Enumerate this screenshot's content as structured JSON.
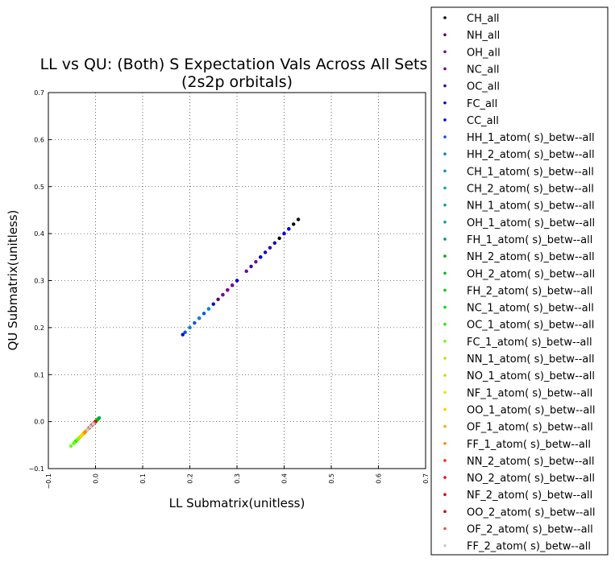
{
  "chart_data": {
    "type": "scatter",
    "title": "LL vs QU: (Both) S Expectation Vals Across All Sets",
    "subtitle": "(2s2p orbitals)",
    "xlabel": "LL Submatrix(unitless)",
    "ylabel": "QU Submatrix(unitless)",
    "xlim": [
      -0.1,
      0.7
    ],
    "ylim": [
      -0.1,
      0.7
    ],
    "xticks": [
      "−0.1",
      "0.0",
      "0.1",
      "0.2",
      "0.3",
      "0.4",
      "0.5",
      "0.6",
      "0.7"
    ],
    "yticks": [
      "−0.1",
      "0.0",
      "0.1",
      "0.2",
      "0.3",
      "0.4",
      "0.5",
      "0.6",
      "0.7"
    ],
    "grid": true,
    "legend_position": "right, outside plot",
    "series": [
      {
        "name": "CH_all",
        "color": "#000000",
        "x": [
          0.39,
          0.41,
          0.42,
          0.43
        ],
        "y": [
          0.39,
          0.41,
          0.42,
          0.43
        ]
      },
      {
        "name": "NH_all",
        "color": "#5a0060",
        "x": [
          0.26,
          0.27,
          0.28,
          0.29
        ],
        "y": [
          0.26,
          0.27,
          0.28,
          0.29
        ]
      },
      {
        "name": "OH_all",
        "color": "#7a0090",
        "x": [
          0.27,
          0.28,
          0.29
        ],
        "y": [
          0.27,
          0.28,
          0.29
        ]
      },
      {
        "name": "NC_all",
        "color": "#7000a0",
        "x": [
          0.3,
          0.32,
          0.34
        ],
        "y": [
          0.3,
          0.32,
          0.34
        ]
      },
      {
        "name": "OC_all",
        "color": "#3000b0",
        "x": [
          0.33,
          0.35,
          0.37
        ],
        "y": [
          0.33,
          0.35,
          0.37
        ]
      },
      {
        "name": "FC_all",
        "color": "#0000c0",
        "x": [
          0.36,
          0.38,
          0.4
        ],
        "y": [
          0.36,
          0.38,
          0.4
        ]
      },
      {
        "name": "CC_all",
        "color": "#0000dd",
        "x": [
          0.185,
          0.2,
          0.22,
          0.25,
          0.3,
          0.35,
          0.4,
          0.41
        ],
        "y": [
          0.185,
          0.2,
          0.22,
          0.25,
          0.3,
          0.35,
          0.4,
          0.41
        ]
      },
      {
        "name": "HH_1_atom( s)_betw--all",
        "color": "#0055dd",
        "x": [
          0.19,
          0.21,
          0.23,
          0.24
        ],
        "y": [
          0.19,
          0.21,
          0.23,
          0.24
        ]
      },
      {
        "name": "HH_2_atom( s)_betw--all",
        "color": "#0088cc",
        "x": [
          0.2,
          0.22,
          0.24
        ],
        "y": [
          0.2,
          0.22,
          0.24
        ]
      },
      {
        "name": "CH_1_atom( s)_betw--all",
        "color": "#0099bb",
        "x": [
          0.005,
          0.0,
          -0.005
        ],
        "y": [
          0.005,
          0.0,
          -0.005
        ]
      },
      {
        "name": "CH_2_atom( s)_betw--all",
        "color": "#00aaaa",
        "x": [
          0.008,
          0.003,
          -0.002
        ],
        "y": [
          0.008,
          0.003,
          -0.002
        ]
      },
      {
        "name": "NH_1_atom( s)_betw--all",
        "color": "#00a0a0",
        "x": [
          0.004,
          -0.002,
          -0.008
        ],
        "y": [
          0.004,
          -0.002,
          -0.008
        ]
      },
      {
        "name": "OH_1_atom( s)_betw--all",
        "color": "#00a090",
        "x": [
          0.002,
          -0.004,
          -0.01
        ],
        "y": [
          0.002,
          -0.004,
          -0.01
        ]
      },
      {
        "name": "FH_1_atom( s)_betw--all",
        "color": "#009a70",
        "x": [
          0.0,
          -0.006,
          -0.012
        ],
        "y": [
          0.0,
          -0.006,
          -0.012
        ]
      },
      {
        "name": "NH_2_atom( s)_betw--all",
        "color": "#00aa00",
        "x": [
          0.006,
          0.0,
          -0.006
        ],
        "y": [
          0.006,
          0.0,
          -0.006
        ]
      },
      {
        "name": "OH_2_atom( s)_betw--all",
        "color": "#00bb00",
        "x": [
          0.004,
          -0.003,
          -0.01
        ],
        "y": [
          0.004,
          -0.003,
          -0.01
        ]
      },
      {
        "name": "FH_2_atom( s)_betw--all",
        "color": "#00cc00",
        "x": [
          0.002,
          -0.005,
          -0.012
        ],
        "y": [
          0.002,
          -0.005,
          -0.012
        ]
      },
      {
        "name": "NC_1_atom( s)_betw--all",
        "color": "#00dd00",
        "x": [
          -0.03,
          -0.036,
          -0.042
        ],
        "y": [
          -0.03,
          -0.036,
          -0.042
        ]
      },
      {
        "name": "OC_1_atom( s)_betw--all",
        "color": "#22ee00",
        "x": [
          -0.034,
          -0.04,
          -0.046
        ],
        "y": [
          -0.034,
          -0.04,
          -0.046
        ]
      },
      {
        "name": "FC_1_atom( s)_betw--all",
        "color": "#66ff00",
        "x": [
          -0.038,
          -0.045,
          -0.052
        ],
        "y": [
          -0.038,
          -0.045,
          -0.052
        ]
      },
      {
        "name": "NN_1_atom( s)_betw--all",
        "color": "#aaee00",
        "x": [
          -0.025,
          -0.03,
          -0.035
        ],
        "y": [
          -0.025,
          -0.03,
          -0.035
        ]
      },
      {
        "name": "NO_1_atom( s)_betw--all",
        "color": "#ccdd00",
        "x": [
          -0.02,
          -0.026,
          -0.032
        ],
        "y": [
          -0.02,
          -0.026,
          -0.032
        ]
      },
      {
        "name": "NF_1_atom( s)_betw--all",
        "color": "#eedd00",
        "x": [
          -0.018,
          -0.024,
          -0.03
        ],
        "y": [
          -0.018,
          -0.024,
          -0.03
        ]
      },
      {
        "name": "OO_1_atom( s)_betw--all",
        "color": "#ffcc00",
        "x": [
          -0.015,
          -0.021,
          -0.027
        ],
        "y": [
          -0.015,
          -0.021,
          -0.027
        ]
      },
      {
        "name": "OF_1_atom( s)_betw--all",
        "color": "#ffaa00",
        "x": [
          -0.012,
          -0.018,
          -0.024
        ],
        "y": [
          -0.012,
          -0.018,
          -0.024
        ]
      },
      {
        "name": "FF_1_atom( s)_betw--all",
        "color": "#ff8800",
        "x": [
          -0.01,
          -0.016,
          -0.022
        ],
        "y": [
          -0.01,
          -0.016,
          -0.022
        ]
      },
      {
        "name": "NN_2_atom( s)_betw--all",
        "color": "#ff3300",
        "x": [
          -0.004,
          -0.008,
          -0.012
        ],
        "y": [
          -0.004,
          -0.008,
          -0.012
        ]
      },
      {
        "name": "NO_2_atom( s)_betw--all",
        "color": "#ee1100",
        "x": [
          -0.002,
          -0.006,
          -0.01
        ],
        "y": [
          -0.002,
          -0.006,
          -0.01
        ]
      },
      {
        "name": "NF_2_atom( s)_betw--all",
        "color": "#dd0000",
        "x": [
          0.0,
          -0.005,
          -0.009
        ],
        "y": [
          0.0,
          -0.005,
          -0.009
        ]
      },
      {
        "name": "OO_2_atom( s)_betw--all",
        "color": "#cc0000",
        "x": [
          -0.001,
          -0.007,
          -0.013
        ],
        "y": [
          -0.001,
          -0.007,
          -0.013
        ]
      },
      {
        "name": "OF_2_atom( s)_betw--all",
        "color": "#dd5555",
        "x": [
          -0.003,
          -0.009,
          -0.015
        ],
        "y": [
          -0.003,
          -0.009,
          -0.015
        ]
      },
      {
        "name": "FF_2_atom( s)_betw--all",
        "color": "#cccccc",
        "x": [
          -0.005,
          -0.011,
          -0.017
        ],
        "y": [
          -0.005,
          -0.011,
          -0.017
        ]
      }
    ]
  }
}
